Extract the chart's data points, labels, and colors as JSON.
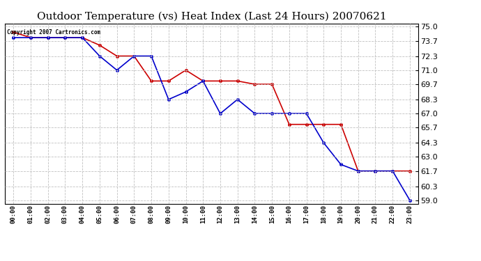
{
  "title": "Outdoor Temperature (vs) Heat Index (Last 24 Hours) 20070621",
  "copyright": "Copyright 2007 Cartronics.com",
  "hours": [
    "00:00",
    "01:00",
    "02:00",
    "03:00",
    "04:00",
    "05:00",
    "06:00",
    "07:00",
    "08:00",
    "09:00",
    "10:00",
    "11:00",
    "12:00",
    "13:00",
    "14:00",
    "15:00",
    "16:00",
    "17:00",
    "18:00",
    "19:00",
    "20:00",
    "21:00",
    "22:00",
    "23:00"
  ],
  "temp": [
    74.5,
    74.0,
    74.0,
    74.0,
    74.0,
    73.3,
    72.3,
    72.3,
    70.0,
    70.0,
    71.0,
    70.0,
    70.0,
    70.0,
    69.7,
    69.7,
    66.0,
    66.0,
    66.0,
    66.0,
    61.7,
    61.7,
    61.7,
    61.7
  ],
  "heat_index": [
    74.0,
    74.0,
    74.0,
    74.0,
    74.0,
    72.3,
    71.0,
    72.3,
    72.3,
    68.3,
    69.0,
    70.0,
    67.0,
    68.3,
    67.0,
    67.0,
    67.0,
    67.0,
    64.3,
    62.3,
    61.7,
    61.7,
    61.7,
    59.0
  ],
  "temp_color": "#cc0000",
  "heat_color": "#0000cc",
  "ylim_min": 59.0,
  "ylim_max": 75.0,
  "yticks": [
    75.0,
    73.7,
    72.3,
    71.0,
    69.7,
    68.3,
    67.0,
    65.7,
    64.3,
    63.0,
    61.7,
    60.3,
    59.0
  ],
  "bg_color": "#ffffff",
  "grid_color": "#c0c0c0",
  "title_fontsize": 11,
  "marker": "o",
  "marker_size": 3,
  "line_width": 1.2
}
